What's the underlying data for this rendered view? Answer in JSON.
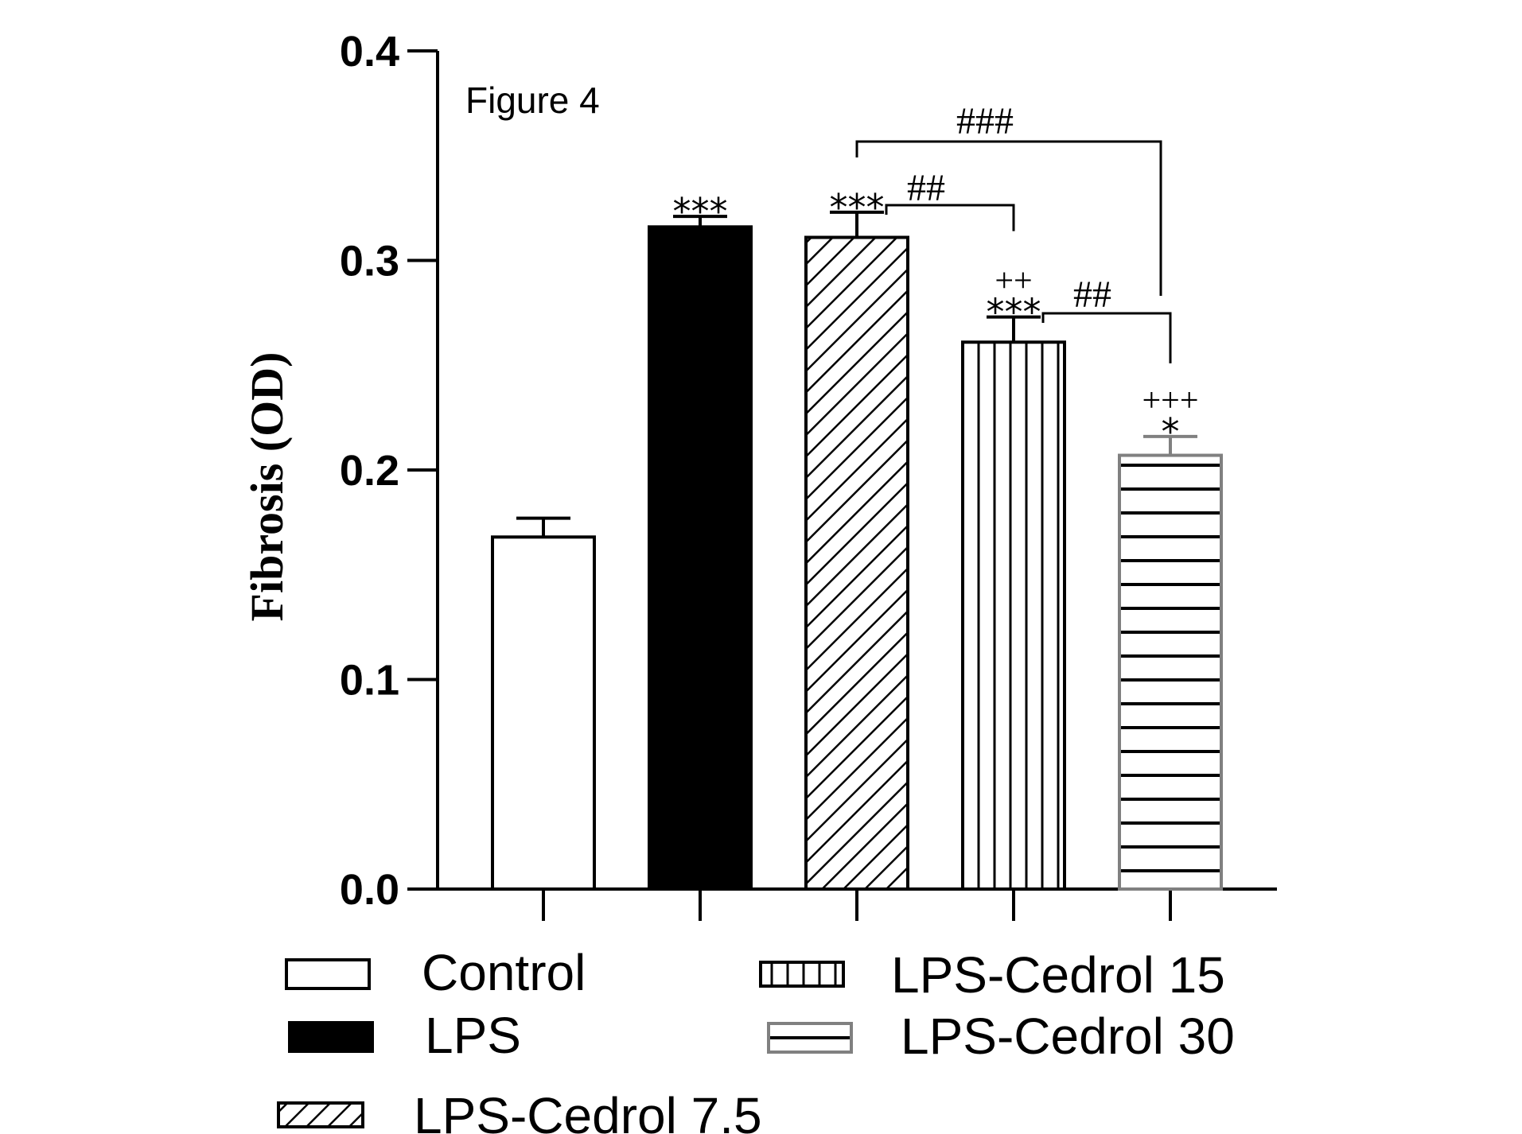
{
  "chart_data": {
    "type": "bar",
    "title": "Figure 4",
    "ylabel": "Fibrosis (OD)",
    "xlabel": "",
    "ylim": [
      0.0,
      0.4
    ],
    "yticks": [
      "0.0",
      "0.1",
      "0.2",
      "0.3",
      "0.4"
    ],
    "categories": [
      "Control",
      "LPS",
      "LPS-Cedrol 7.5",
      "LPS-Cedrol 15",
      "LPS-Cedrol 30"
    ],
    "values": [
      0.168,
      0.316,
      0.311,
      0.261,
      0.207
    ],
    "errors": [
      0.009,
      0.005,
      0.012,
      0.012,
      0.009
    ],
    "patterns": [
      "white",
      "black",
      "diagonal",
      "vertical",
      "horizontal"
    ],
    "significance": [
      "",
      "***",
      "***",
      "***\n++",
      "*\n+++"
    ],
    "sig_lines": [
      {
        "from": "LPS-Cedrol 7.5",
        "to": "LPS-Cedrol 15",
        "label": "##"
      },
      {
        "from": "LPS-Cedrol 15",
        "to": "LPS-Cedrol 30",
        "label": "##"
      },
      {
        "from": "LPS-Cedrol 7.5",
        "to": "LPS-Cedrol 30",
        "label": "###"
      }
    ],
    "legend": [
      {
        "label": "Control",
        "pattern": "white"
      },
      {
        "label": "LPS",
        "pattern": "black"
      },
      {
        "label": "LPS-Cedrol 7.5",
        "pattern": "diagonal"
      },
      {
        "label": "LPS-Cedrol 15",
        "pattern": "vertical"
      },
      {
        "label": "LPS-Cedrol 30",
        "pattern": "horizontal"
      }
    ],
    "grid": false,
    "legend_position": "bottom"
  },
  "colors": {
    "bar_edge": "#000000",
    "last_bar_edge": "#808080",
    "lps_fill": "#000000",
    "axis": "#000000"
  }
}
